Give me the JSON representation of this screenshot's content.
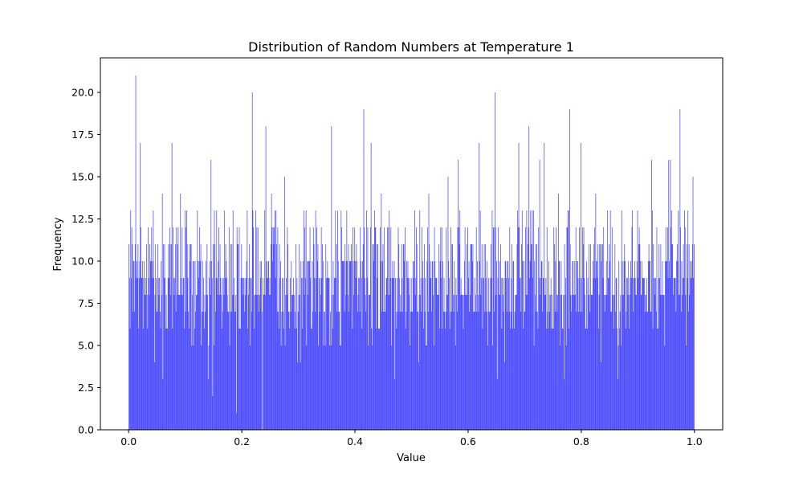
{
  "chart_data": {
    "type": "bar",
    "subtype": "histogram",
    "title": "Distribution of Random Numbers at Temperature 1",
    "xlabel": "Value",
    "ylabel": "Frequency",
    "xlim": [
      -0.05,
      1.05
    ],
    "ylim": [
      0,
      22.05
    ],
    "bin_range": [
      0.0,
      1.0
    ],
    "x_ticks": [
      0.0,
      0.2,
      0.4,
      0.6,
      0.8,
      1.0
    ],
    "x_tick_labels": [
      "0.0",
      "0.2",
      "0.4",
      "0.6",
      "0.8",
      "1.0"
    ],
    "y_ticks": [
      0,
      2.5,
      5.0,
      7.5,
      10.0,
      12.5,
      15.0,
      17.5,
      20.0
    ],
    "y_tick_labels": [
      "0.0",
      "2.5",
      "5.0",
      "7.5",
      "10.0",
      "12.5",
      "15.0",
      "17.5",
      "20.0"
    ],
    "bar_color": "#4b4bff",
    "bin_count": 1000,
    "seed": 7,
    "peaks": [
      {
        "x": 0.0,
        "y": 11
      },
      {
        "x": 0.003,
        "y": 13
      },
      {
        "x": 0.012,
        "y": 21
      },
      {
        "x": 0.02,
        "y": 17
      },
      {
        "x": 0.076,
        "y": 17
      },
      {
        "x": 0.148,
        "y": 2
      },
      {
        "x": 0.19,
        "y": 1
      },
      {
        "x": 0.218,
        "y": 20
      },
      {
        "x": 0.236,
        "y": 0
      },
      {
        "x": 0.242,
        "y": 18
      },
      {
        "x": 0.358,
        "y": 18
      },
      {
        "x": 0.415,
        "y": 19
      },
      {
        "x": 0.428,
        "y": 17
      },
      {
        "x": 0.583,
        "y": 16
      },
      {
        "x": 0.62,
        "y": 17
      },
      {
        "x": 0.648,
        "y": 20
      },
      {
        "x": 0.69,
        "y": 17
      },
      {
        "x": 0.708,
        "y": 18
      },
      {
        "x": 0.735,
        "y": 17
      },
      {
        "x": 0.78,
        "y": 19
      },
      {
        "x": 0.8,
        "y": 17
      },
      {
        "x": 0.925,
        "y": 16
      },
      {
        "x": 0.955,
        "y": 16
      },
      {
        "x": 0.975,
        "y": 19
      },
      {
        "x": 0.998,
        "y": 15
      }
    ],
    "troughs": [
      {
        "x": 0.0,
        "y": 3
      },
      {
        "x": 0.033,
        "y": 6
      },
      {
        "x": 0.06,
        "y": 3
      },
      {
        "x": 0.14,
        "y": 3
      },
      {
        "x": 0.47,
        "y": 3
      },
      {
        "x": 0.652,
        "y": 3
      },
      {
        "x": 0.665,
        "y": 4
      },
      {
        "x": 0.77,
        "y": 3
      },
      {
        "x": 0.865,
        "y": 3
      }
    ]
  }
}
